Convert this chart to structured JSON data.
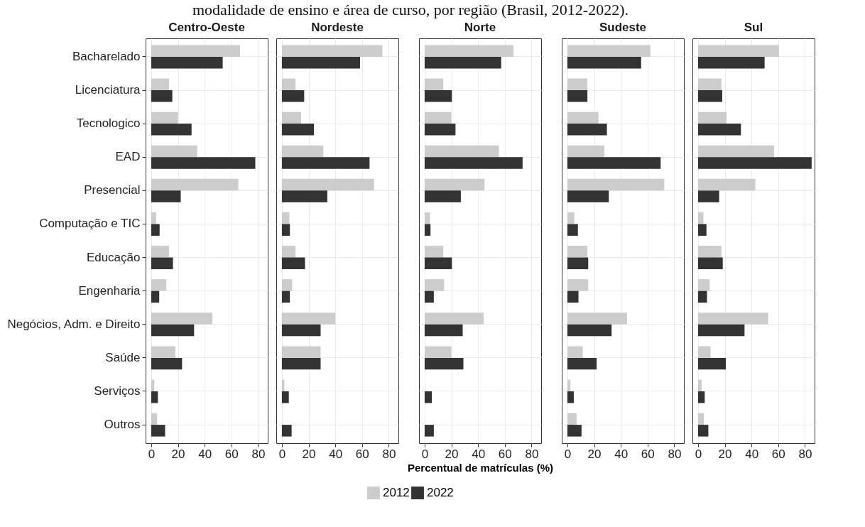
{
  "chart_data": [
    {
      "type": "bar",
      "orientation": "horizontal",
      "title": "Centro-Oeste",
      "legend": "bottom",
      "annotations": [
        "modalidade de ensino e área de curso, por região (Brasil, 2012-2022)."
      ],
      "categories": [
        "Bacharelado",
        "Licenciatura",
        "Tecnologico",
        "EAD",
        "Presencial",
        "Computação e TIC",
        "Educação",
        "Engenharia",
        "Negócios, Adm. e Direito",
        "Saúde",
        "Serviços",
        "Outros"
      ],
      "xlim": [
        -4.2,
        87.2
      ],
      "xticks": [
        0,
        20,
        40,
        60,
        80
      ],
      "grid": true,
      "series": [
        {
          "name": "2012",
          "color": "#cccccc",
          "values": [
            66.5,
            13.3,
            20,
            34.4,
            65.2,
            3.7,
            13.3,
            11.3,
            45.8,
            18.1,
            2.3,
            4.4
          ]
        },
        {
          "name": "2022",
          "color": "#333333",
          "values": [
            53.5,
            15.8,
            30.2,
            77.9,
            22.1,
            6.3,
            16.3,
            6,
            32.1,
            23.1,
            5,
            10.4
          ]
        }
      ]
    },
    {
      "type": "bar",
      "orientation": "horizontal",
      "title": "Nordeste",
      "tick_labels": "x",
      "categories": [
        "Bacharelado",
        "Licenciatura",
        "Tecnologico",
        "EAD",
        "Presencial",
        "Computação e TIC",
        "Educação",
        "Engenharia",
        "Negócios, Adm. e Direito",
        "Saúde",
        "Serviços",
        "Outros"
      ],
      "xlim": [
        -4.2,
        87.2
      ],
      "xticks": [
        0,
        20,
        40,
        60,
        80
      ],
      "grid": true,
      "series": [
        {
          "name": "2012",
          "color": "#cccccc",
          "values": [
            75.2,
            10.2,
            14.4,
            31,
            69,
            5.6,
            10.2,
            7.7,
            40,
            29,
            1.9,
            null
          ]
        },
        {
          "name": "2022",
          "color": "#333333",
          "values": [
            58.5,
            16.7,
            24,
            65.6,
            34,
            6,
            17.3,
            6,
            29,
            29,
            5.2,
            7.3
          ]
        }
      ]
    },
    {
      "type": "bar",
      "orientation": "horizontal",
      "title": "Norte",
      "tick_labels": "x",
      "xlabel": "Percentual de matrículas (%)",
      "categories": [
        "Bacharelado",
        "Licenciatura",
        "Tecnologico",
        "EAD",
        "Presencial",
        "Computação e TIC",
        "Educação",
        "Engenharia",
        "Negócios, Adm. e Direito",
        "Saúde",
        "Serviços",
        "Outros"
      ],
      "xlim": [
        -4.2,
        87.2
      ],
      "xticks": [
        0,
        20,
        40,
        60,
        80
      ],
      "grid": true,
      "series": [
        {
          "name": "2012",
          "color": "#cccccc",
          "values": [
            66.5,
            14,
            20,
            55.6,
            44.8,
            4,
            14,
            14.6,
            44.2,
            20,
            null,
            null
          ]
        },
        {
          "name": "2022",
          "color": "#333333",
          "values": [
            57.3,
            20.4,
            23.1,
            73.3,
            27.1,
            4.4,
            20.4,
            6.9,
            28.5,
            29,
            5.4,
            6.9
          ]
        }
      ]
    },
    {
      "type": "bar",
      "orientation": "horizontal",
      "title": "Sudeste",
      "tick_labels": "x",
      "categories": [
        "Bacharelado",
        "Licenciatura",
        "Tecnologico",
        "EAD",
        "Presencial",
        "Computação e TIC",
        "Educação",
        "Engenharia",
        "Negócios, Adm. e Direito",
        "Saúde",
        "Serviços",
        "Outros"
      ],
      "xlim": [
        -4.2,
        87.2
      ],
      "xticks": [
        0,
        20,
        40,
        60,
        80
      ],
      "grid": true,
      "series": [
        {
          "name": "2012",
          "color": "#cccccc",
          "values": [
            62.1,
            15,
            23.3,
            27.7,
            72.5,
            5.2,
            15,
            15.6,
            44.6,
            11.5,
            2.3,
            6.9
          ]
        },
        {
          "name": "2022",
          "color": "#333333",
          "values": [
            55.2,
            15,
            29.6,
            69.8,
            31,
            7.9,
            15.6,
            8.3,
            33.1,
            21.9,
            4.8,
            10.6
          ]
        }
      ]
    },
    {
      "type": "bar",
      "orientation": "horizontal",
      "title": "Sul",
      "tick_labels": "x",
      "categories": [
        "Bacharelado",
        "Licenciatura",
        "Tecnologico",
        "EAD",
        "Presencial",
        "Computação e TIC",
        "Educação",
        "Engenharia",
        "Negócios, Adm. e Direito",
        "Saúde",
        "Serviços",
        "Outros"
      ],
      "xlim": [
        -4.2,
        87.2
      ],
      "xticks": [
        0,
        20,
        40,
        60,
        80
      ],
      "grid": true,
      "series": [
        {
          "name": "2012",
          "color": "#cccccc",
          "values": [
            60.6,
            17.5,
            21.3,
            56.9,
            42.9,
            4,
            17.5,
            8.7,
            52.5,
            9.4,
            2.7,
            4.4
          ]
        },
        {
          "name": "2022",
          "color": "#333333",
          "values": [
            49.8,
            18.1,
            32.1,
            85,
            15.8,
            6.3,
            18.5,
            6.7,
            34.8,
            20.8,
            5,
            7.7
          ]
        }
      ]
    }
  ]
}
